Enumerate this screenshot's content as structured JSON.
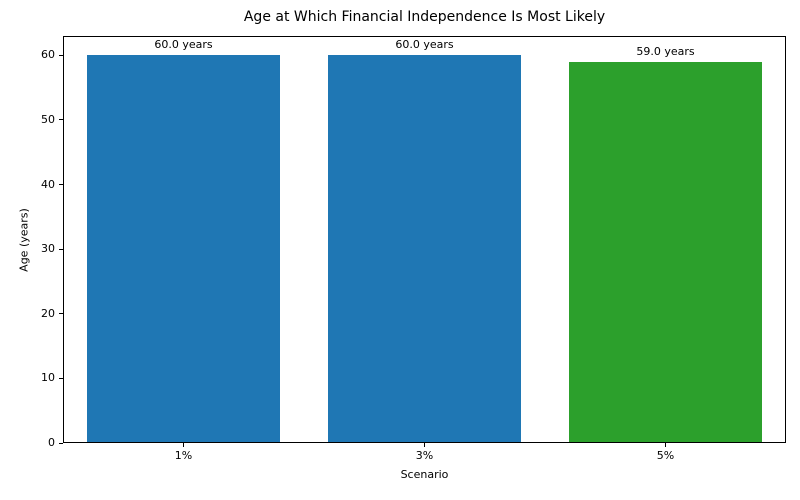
{
  "chart_data": {
    "type": "bar",
    "title": "Age at Which Financial Independence Is Most Likely",
    "xlabel": "Scenario",
    "ylabel": "Age (years)",
    "categories": [
      "1%",
      "3%",
      "5%"
    ],
    "values": [
      60.0,
      60.0,
      59.0
    ],
    "bar_labels": [
      "60.0 years",
      "60.0 years",
      "59.0 years"
    ],
    "bar_colors": [
      "#1f77b4",
      "#1f77b4",
      "#2ca02c"
    ],
    "ylim": [
      0,
      63
    ],
    "yticks": [
      0,
      10,
      20,
      30,
      40,
      50,
      60
    ],
    "bar_width_fraction": 0.8,
    "grid": false,
    "legend": "none",
    "plot_background": "#ffffff",
    "axis_color": "#000000",
    "text_color": "#000000"
  }
}
